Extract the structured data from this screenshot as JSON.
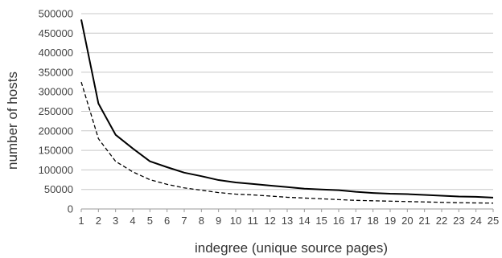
{
  "chart_data": {
    "type": "line",
    "title": "",
    "xlabel": "indegree (unique source pages)",
    "ylabel": "number of hosts",
    "x": [
      1,
      2,
      3,
      4,
      5,
      6,
      7,
      8,
      9,
      10,
      11,
      12,
      13,
      14,
      15,
      16,
      17,
      18,
      19,
      20,
      21,
      22,
      23,
      24,
      25
    ],
    "xlim": [
      1,
      25
    ],
    "ylim": [
      0,
      500000
    ],
    "y_ticks": [
      "0",
      "50000",
      "100000",
      "150000",
      "200000",
      "250000",
      "300000",
      "350000",
      "400000",
      "450000",
      "500000"
    ],
    "x_ticks": [
      "1",
      "2",
      "3",
      "4",
      "5",
      "6",
      "7",
      "8",
      "9",
      "10",
      "11",
      "12",
      "13",
      "14",
      "15",
      "16",
      "17",
      "18",
      "19",
      "20",
      "21",
      "22",
      "23",
      "24",
      "25"
    ],
    "grid": true,
    "legend": "none",
    "series": [
      {
        "style": "solid",
        "color": "#000000",
        "values": [
          485000,
          270000,
          190000,
          155000,
          122000,
          107000,
          93000,
          84000,
          74000,
          68000,
          64000,
          60000,
          56000,
          52000,
          50000,
          48000,
          44000,
          41000,
          39000,
          38000,
          36000,
          34000,
          32000,
          31000,
          29000
        ]
      },
      {
        "style": "dashed",
        "color": "#000000",
        "values": [
          325000,
          180000,
          122000,
          95000,
          75000,
          63000,
          54000,
          48000,
          42000,
          38000,
          36000,
          33000,
          30000,
          28000,
          26000,
          24000,
          22000,
          21000,
          20000,
          19000,
          18000,
          17000,
          16000,
          15500,
          15000
        ]
      }
    ]
  }
}
